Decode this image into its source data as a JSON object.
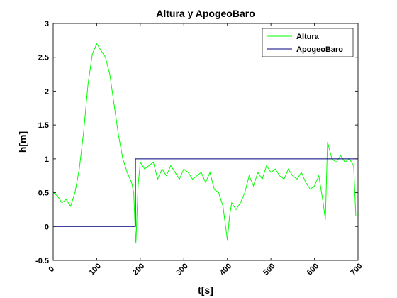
{
  "chart_data": {
    "type": "line",
    "title": "Altura y ApogeoBaro",
    "xlabel": "t[s]",
    "ylabel": "h[m]",
    "xlim": [
      0,
      700
    ],
    "ylim": [
      -0.5,
      3
    ],
    "xticks": [
      "0",
      "100",
      "200",
      "300",
      "400",
      "500",
      "600",
      "700"
    ],
    "yticks": [
      "-0.5",
      "0",
      "0.5",
      "1",
      "1.5",
      "2",
      "2.5",
      "3"
    ],
    "grid": false,
    "legend_position": "top-right",
    "series": [
      {
        "name": "Altura",
        "color": "#00ff00",
        "x": [
          0,
          10,
          20,
          30,
          40,
          50,
          60,
          70,
          80,
          90,
          100,
          110,
          120,
          130,
          140,
          150,
          160,
          170,
          180,
          185,
          188,
          190,
          195,
          200,
          210,
          220,
          230,
          240,
          250,
          260,
          270,
          280,
          290,
          300,
          310,
          320,
          330,
          340,
          350,
          360,
          370,
          380,
          390,
          395,
          400,
          405,
          410,
          420,
          430,
          440,
          450,
          460,
          470,
          480,
          490,
          500,
          510,
          520,
          530,
          540,
          550,
          560,
          570,
          580,
          590,
          600,
          610,
          620,
          625,
          630,
          640,
          650,
          660,
          670,
          680,
          690,
          695
        ],
        "y": [
          0.5,
          0.45,
          0.35,
          0.4,
          0.3,
          0.5,
          0.85,
          1.4,
          2.1,
          2.55,
          2.7,
          2.6,
          2.5,
          2.25,
          1.8,
          1.35,
          1.0,
          0.8,
          0.65,
          0.5,
          0.0,
          -0.25,
          0.6,
          0.95,
          0.85,
          0.9,
          0.95,
          0.7,
          0.85,
          0.75,
          0.9,
          0.8,
          0.7,
          0.85,
          0.8,
          0.7,
          0.75,
          0.8,
          0.65,
          0.8,
          0.55,
          0.5,
          0.3,
          0.05,
          -0.2,
          0.15,
          0.35,
          0.25,
          0.35,
          0.5,
          0.75,
          0.6,
          0.8,
          0.7,
          0.9,
          0.8,
          0.85,
          0.75,
          0.7,
          0.85,
          0.75,
          0.7,
          0.8,
          0.65,
          0.55,
          0.6,
          0.75,
          0.35,
          0.1,
          1.25,
          1.0,
          0.95,
          1.05,
          0.95,
          1.0,
          0.9,
          0.15
        ]
      },
      {
        "name": "ApogeoBaro",
        "color": "#00007f",
        "x": [
          0,
          189,
          189,
          700
        ],
        "y": [
          0,
          0,
          1,
          1
        ]
      }
    ]
  }
}
